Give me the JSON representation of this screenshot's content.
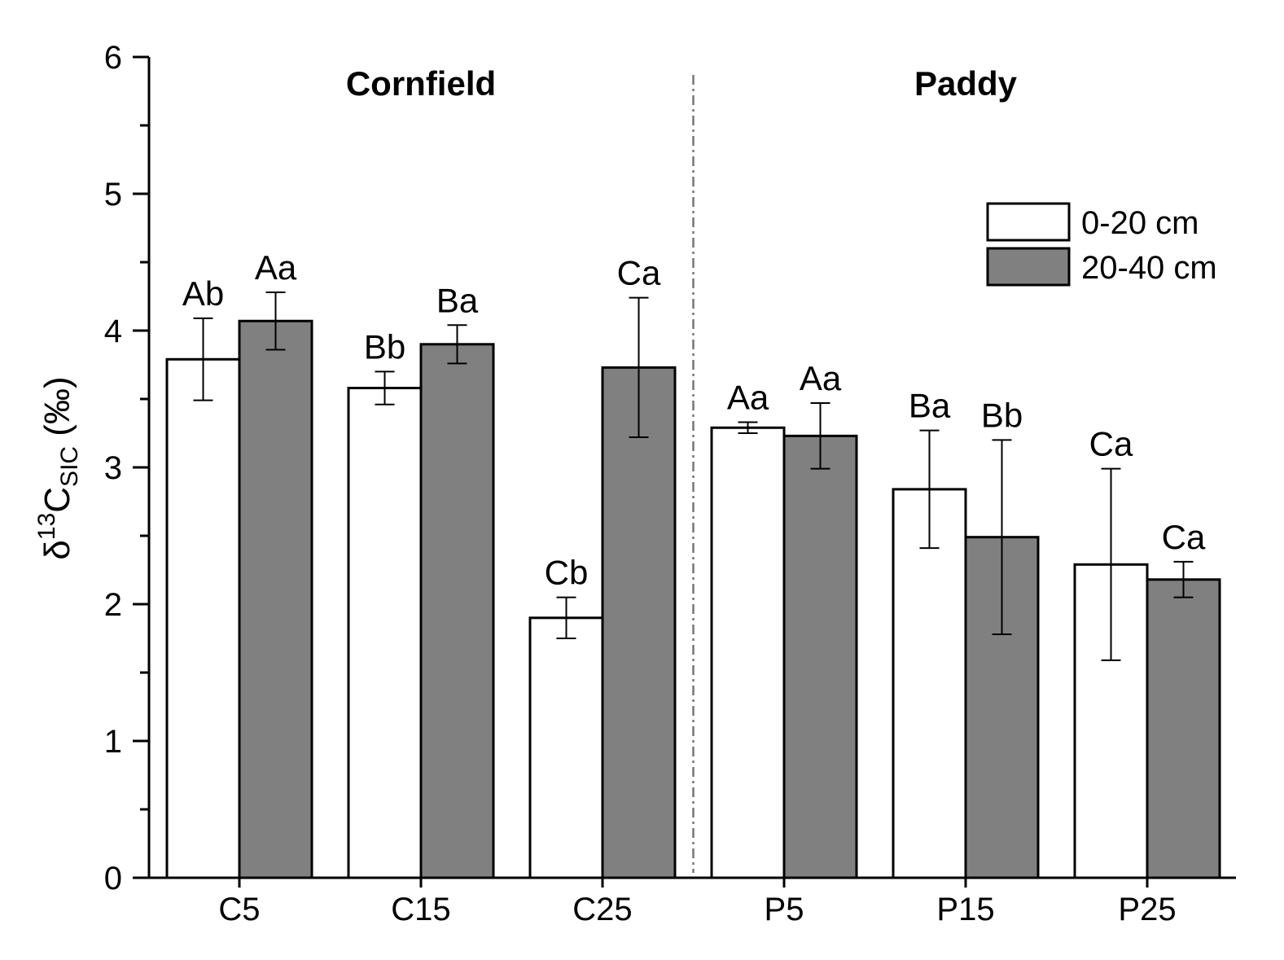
{
  "chart_data": {
    "type": "bar",
    "title": "",
    "xlabel": "",
    "ylabel": {
      "prefix": "δ",
      "superscript": "13",
      "main": "C",
      "subscript": "SIC",
      "unit": " (‰)"
    },
    "ylim": [
      0,
      6
    ],
    "yticks": [
      0,
      1,
      2,
      3,
      4,
      5,
      6
    ],
    "categories": [
      "C5",
      "C15",
      "C25",
      "P5",
      "P15",
      "P25"
    ],
    "series": [
      {
        "name": "0-20 cm",
        "color": "#ffffff",
        "values": [
          3.79,
          3.58,
          1.9,
          3.29,
          2.84,
          2.29
        ],
        "errors": [
          0.3,
          0.12,
          0.15,
          0.04,
          0.43,
          0.7
        ],
        "labels": [
          "Ab",
          "Bb",
          "Cb",
          "Aa",
          "Ba",
          "Ca"
        ]
      },
      {
        "name": "20-40 cm",
        "color": "#808080",
        "values": [
          4.07,
          3.9,
          3.73,
          3.23,
          2.49,
          2.18
        ],
        "errors": [
          0.21,
          0.14,
          0.51,
          0.24,
          0.71,
          0.13
        ],
        "labels": [
          "Aa",
          "Ba",
          "Ca",
          "Aa",
          "Bb",
          "Ca"
        ]
      }
    ],
    "groups": [
      {
        "name": "Cornfield",
        "categories": [
          "C5",
          "C15",
          "C25"
        ]
      },
      {
        "name": "Paddy",
        "categories": [
          "P5",
          "P15",
          "P25"
        ]
      }
    ],
    "legend_position": "top-right"
  }
}
